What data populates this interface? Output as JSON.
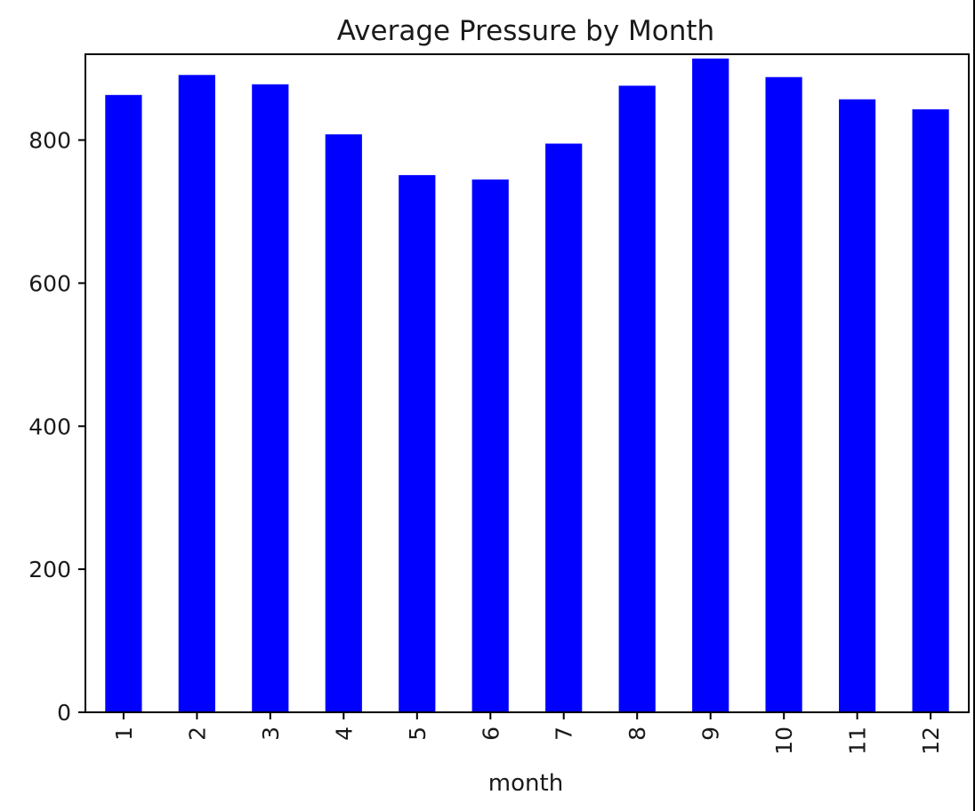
{
  "chart_data": {
    "type": "bar",
    "title": "Average Pressure by Month",
    "xlabel": "month",
    "ylabel": "",
    "categories": [
      "1",
      "2",
      "3",
      "4",
      "5",
      "6",
      "7",
      "8",
      "9",
      "10",
      "11",
      "12"
    ],
    "values": [
      863,
      891,
      878,
      808,
      751,
      745,
      795,
      876,
      914,
      888,
      857,
      843
    ],
    "ylim": [
      0,
      920
    ],
    "yticks": [
      0,
      200,
      400,
      600,
      800
    ],
    "bar_color": "#0000ff",
    "grid": false,
    "legend": "none"
  }
}
